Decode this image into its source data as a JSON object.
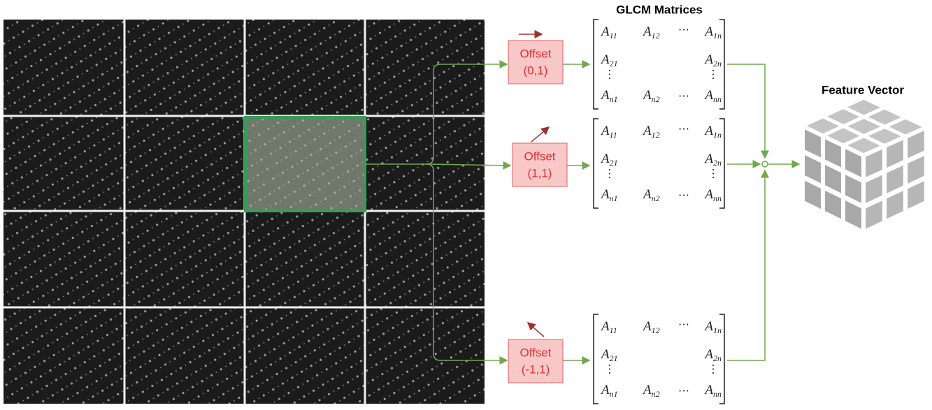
{
  "titles": {
    "matrices": "GLCM Matrices",
    "feature": "Feature Vector"
  },
  "offsets": [
    {
      "label": "Offset",
      "value": "(0,1)"
    },
    {
      "label": "Offset",
      "value": "(1,1)"
    },
    {
      "label": "Offset",
      "value": "(-1,1)"
    }
  ],
  "matrices": [
    {
      "rows": [
        [
          {
            "base": "A",
            "sub": "11"
          },
          {
            "base": "A",
            "sub": "12"
          },
          "⋯",
          {
            "base": "A",
            "sub": "1n"
          }
        ],
        [
          {
            "base": "A",
            "sub": "21"
          },
          {
            "base": "A",
            "sub": "2n"
          }
        ],
        [
          "⋮",
          "⋮"
        ],
        [
          {
            "base": "A",
            "sub": "n1"
          },
          {
            "base": "A",
            "sub": "n2"
          },
          "⋯",
          {
            "base": "A",
            "sub": "nn"
          }
        ]
      ]
    },
    {
      "rows": [
        [
          {
            "base": "A",
            "sub": "11"
          },
          {
            "base": "A",
            "sub": "12"
          },
          "⋯",
          {
            "base": "A",
            "sub": "1n"
          }
        ],
        [
          {
            "base": "A",
            "sub": "21"
          },
          {
            "base": "A",
            "sub": "2n"
          }
        ],
        [
          "⋮",
          "⋮"
        ],
        [
          {
            "base": "A",
            "sub": "n1"
          },
          {
            "base": "A",
            "sub": "n2"
          },
          "⋯",
          {
            "base": "A",
            "sub": "nn"
          }
        ]
      ]
    },
    {
      "rows": [
        [
          {
            "base": "A",
            "sub": "11"
          },
          {
            "base": "A",
            "sub": "12"
          },
          "⋯",
          {
            "base": "A",
            "sub": "1n"
          }
        ],
        [
          {
            "base": "A",
            "sub": "21"
          },
          {
            "base": "A",
            "sub": "2n"
          }
        ],
        [
          "⋮",
          "⋮"
        ],
        [
          {
            "base": "A",
            "sub": "n1"
          },
          {
            "base": "A",
            "sub": "n2"
          },
          "⋯",
          {
            "base": "A",
            "sub": "nn"
          }
        ]
      ]
    }
  ]
}
